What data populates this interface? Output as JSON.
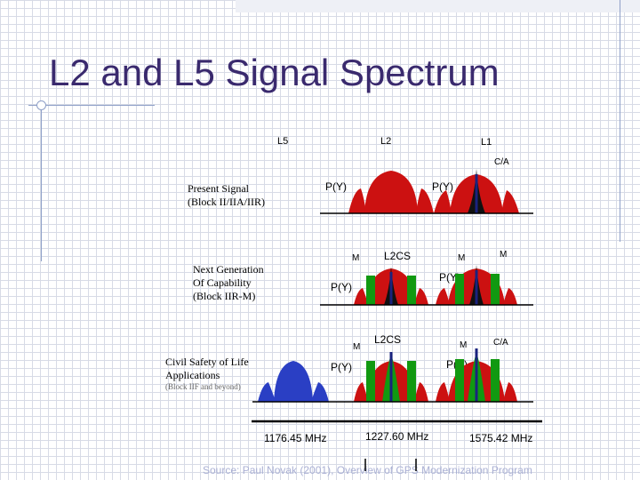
{
  "slide": {
    "title": "L2 and L5 Signal Spectrum",
    "source": "Source: Paul Novak (2001), Overview of GPS Modernization Program"
  },
  "bands": {
    "l5": "L5",
    "l2": "L2",
    "l1": "L1"
  },
  "rows": {
    "present": {
      "label_line1": "Present Signal",
      "label_line2": "(Block II/IIA/IIR)",
      "ca": "C/A",
      "py_left": "P(Y)",
      "py_right": "P(Y)"
    },
    "next": {
      "label_line1": "Next Generation",
      "label_line2": "Of Capability",
      "label_line3": "(Block IIR-M)",
      "m_left": "M",
      "l2cs": "L2CS",
      "m_mid": "M",
      "m_right": "M",
      "py_left": "P(Y)",
      "py_right": "P(Y)"
    },
    "civil": {
      "label_line1": "Civil Safety of Life",
      "label_line2": "Applications",
      "label_line3": "(Block IIF and beyond)",
      "m_left": "M",
      "l2cs": "L2CS",
      "m_mid": "M",
      "ca": "C/A",
      "py_left": "P(Y)",
      "py_right": "P(Y)"
    }
  },
  "frequencies": {
    "l5": "1176.45 MHz",
    "l2": "1227.60 MHz",
    "l1": "1575.42 MHz"
  },
  "colors": {
    "py": "#cc1111",
    "l5": "#2a3fc4",
    "green": "#119911",
    "navy": "#1a237e",
    "title": "#3a2a6e"
  }
}
